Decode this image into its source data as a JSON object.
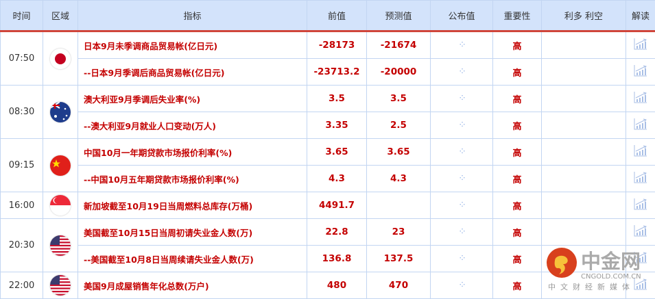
{
  "headers": [
    "时间",
    "区域",
    "指标",
    "前值",
    "预测值",
    "公布值",
    "重要性",
    "利多 利空",
    "解读"
  ],
  "groups": [
    {
      "time": "07:50",
      "flag": "japan",
      "rows": [
        {
          "name": "日本9月未季调商品贸易帐(亿日元)",
          "prev": "-28173",
          "forecast": "-21674",
          "importance": "高"
        },
        {
          "name": "--日本9月季调后商品贸易帐(亿日元)",
          "prev": "-23713.2",
          "forecast": "-20000",
          "importance": "高"
        }
      ]
    },
    {
      "time": "08:30",
      "flag": "australia",
      "rows": [
        {
          "name": "澳大利亚9月季调后失业率(%)",
          "prev": "3.5",
          "forecast": "3.5",
          "importance": "高"
        },
        {
          "name": "--澳大利亚9月就业人口变动(万人)",
          "prev": "3.35",
          "forecast": "2.5",
          "importance": "高"
        }
      ]
    },
    {
      "time": "09:15",
      "flag": "china",
      "rows": [
        {
          "name": "中国10月一年期贷款市场报价利率(%)",
          "prev": "3.65",
          "forecast": "3.65",
          "importance": "高"
        },
        {
          "name": "--中国10月五年期贷款市场报价利率(%)",
          "prev": "4.3",
          "forecast": "4.3",
          "importance": "高"
        }
      ]
    },
    {
      "time": "16:00",
      "flag": "singapore",
      "rows": [
        {
          "name": "新加坡截至10月19日当周燃料总库存(万桶)",
          "prev": "4491.7",
          "forecast": "",
          "importance": "高"
        }
      ]
    },
    {
      "time": "20:30",
      "flag": "usa",
      "rows": [
        {
          "name": "美国截至10月15日当周初请失业金人数(万)",
          "prev": "22.8",
          "forecast": "23",
          "importance": "高"
        },
        {
          "name": "--美国截至10月8日当周续请失业金人数(万)",
          "prev": "136.8",
          "forecast": "137.5",
          "importance": "高"
        }
      ]
    },
    {
      "time": "22:00",
      "flag": "usa",
      "rows": [
        {
          "name": "美国9月成屋销售年化总数(万户)",
          "prev": "480",
          "forecast": "470",
          "importance": "高"
        }
      ]
    }
  ],
  "watermark": {
    "brand": "中金网",
    "domain": "CNGOLD.COM.CN",
    "slogan": "中文财经新媒体"
  },
  "colors": {
    "header_bg": "#d3e3fb",
    "accent_red": "#c40000",
    "divider": "#d0453a"
  }
}
